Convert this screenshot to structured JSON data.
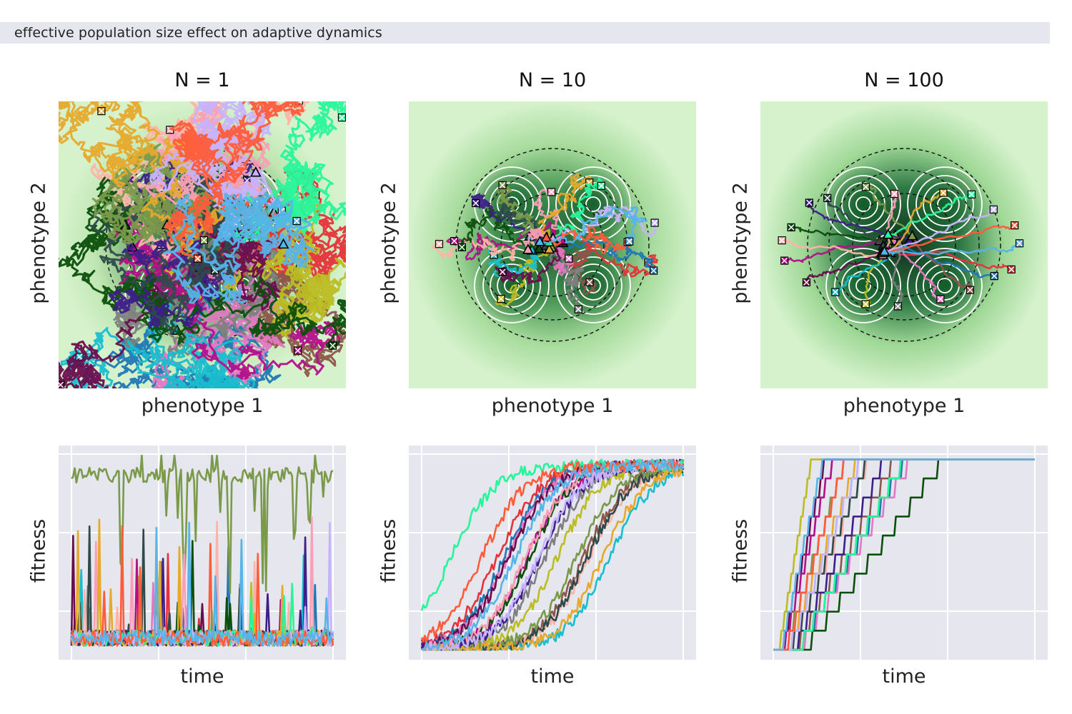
{
  "banner": {
    "text": "effective population size effect on adaptive dynamics"
  },
  "panels": [
    {
      "title": "N = 1",
      "xlabel": "phenotype 1",
      "ylabel": "phenotype 2",
      "fit_xlabel": "time",
      "fit_ylabel": "fitness"
    },
    {
      "title": "N = 10",
      "xlabel": "phenotype 1",
      "ylabel": "phenotype 2",
      "fit_xlabel": "time",
      "fit_ylabel": "fitness"
    },
    {
      "title": "N = 100",
      "xlabel": "phenotype 1",
      "ylabel": "phenotype 2",
      "fit_xlabel": "time",
      "fit_ylabel": "fitness"
    }
  ],
  "chart_data": [
    {
      "type": "line",
      "panel": "phenotype space trajectories",
      "population_sizes": [
        "N = 1",
        "N = 10",
        "N = 100"
      ],
      "xlabel": "phenotype 1",
      "ylabel": "phenotype 2",
      "fitness_peaks": [
        [
          -1,
          1
        ],
        [
          1,
          1
        ],
        [
          -1,
          -1
        ],
        [
          1,
          -1
        ]
      ],
      "colormap": "greens",
      "ticks": "none",
      "markers": {
        "start": "triangle",
        "end": "x"
      }
    },
    {
      "type": "line",
      "panel": "fitness over time",
      "xlabel": "time",
      "ylabel": "fitness",
      "grid": true,
      "series_count": 20,
      "series_colors": [
        "#e6323a",
        "#1f77b4",
        "#8c564b",
        "#e377c2",
        "#7f7f7f",
        "#bcbd22",
        "#17becf",
        "#6a0d4d",
        "#b40f8a",
        "#ffb3a8",
        "#0b4f0b",
        "#3d1f88",
        "#2e4a4a",
        "#7a9a4a",
        "#fa9fb5",
        "#e6a92a",
        "#27f59a",
        "#c6b3ff",
        "#ff5c3a",
        "#56b4e9"
      ]
    }
  ]
}
